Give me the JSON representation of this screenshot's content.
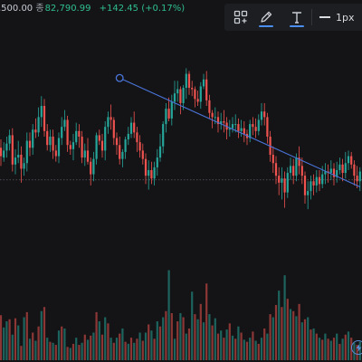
{
  "header": {
    "ohlc_prefix": ",500.00",
    "close_label": "종",
    "close_value": "82,790.99",
    "change_text": "+142.45 (+0.17%)"
  },
  "toolbar": {
    "tools": [
      {
        "name": "layout-add",
        "icon": "grid-plus-icon"
      },
      {
        "name": "line-color",
        "icon": "pencil-icon",
        "underline_color": "#4a8ff0"
      },
      {
        "name": "text-color",
        "icon": "text-t-icon",
        "underline_color": "#4a8ff0"
      }
    ],
    "line_width_label": "1px",
    "more_label": "‹"
  },
  "colors": {
    "background": "#141416",
    "up": "#26a69a",
    "down": "#ef5350",
    "trendline": "#4a74d9",
    "accent": "#4a8ff0"
  },
  "chart_data": {
    "type": "candlestick",
    "candles": [
      [
        138,
        132,
        144,
        125
      ],
      [
        131,
        136,
        142,
        128
      ],
      [
        136,
        141,
        146,
        131
      ],
      [
        141,
        147,
        151,
        136
      ],
      [
        147,
        126,
        152,
        121
      ],
      [
        126,
        131,
        137,
        119
      ],
      [
        131,
        133,
        143,
        127
      ],
      [
        133,
        123,
        139,
        113
      ],
      [
        123,
        127,
        131,
        118
      ],
      [
        127,
        143,
        149,
        121
      ],
      [
        143,
        138,
        149,
        132
      ],
      [
        138,
        151,
        155,
        133
      ],
      [
        151,
        149,
        159,
        145
      ],
      [
        149,
        160,
        167,
        146
      ],
      [
        160,
        168,
        175,
        153
      ],
      [
        168,
        150,
        173,
        146
      ],
      [
        150,
        140,
        155,
        136
      ],
      [
        140,
        146,
        151,
        135
      ],
      [
        146,
        136,
        151,
        130
      ],
      [
        136,
        132,
        140,
        128
      ],
      [
        132,
        145,
        149,
        127
      ],
      [
        145,
        153,
        160,
        140
      ],
      [
        153,
        158,
        165,
        150
      ],
      [
        158,
        140,
        161,
        135
      ],
      [
        140,
        137,
        143,
        133
      ],
      [
        137,
        142,
        148,
        129
      ],
      [
        142,
        150,
        156,
        140
      ],
      [
        150,
        146,
        155,
        138
      ],
      [
        146,
        131,
        150,
        127
      ],
      [
        131,
        136,
        141,
        125
      ],
      [
        136,
        128,
        145,
        126
      ],
      [
        128,
        119,
        131,
        111
      ],
      [
        119,
        130,
        135,
        114
      ],
      [
        130,
        147,
        149,
        126
      ],
      [
        147,
        143,
        151,
        140
      ],
      [
        143,
        136,
        148,
        131
      ],
      [
        136,
        153,
        157,
        129
      ],
      [
        153,
        160,
        164,
        148
      ],
      [
        160,
        158,
        169,
        151
      ],
      [
        158,
        145,
        160,
        140
      ],
      [
        145,
        140,
        149,
        133
      ],
      [
        140,
        130,
        146,
        126
      ],
      [
        130,
        135,
        137,
        124
      ],
      [
        135,
        144,
        146,
        130
      ],
      [
        144,
        148,
        153,
        140
      ],
      [
        148,
        156,
        160,
        145
      ],
      [
        156,
        149,
        164,
        145
      ],
      [
        149,
        142,
        153,
        135
      ],
      [
        142,
        136,
        147,
        131
      ],
      [
        136,
        130,
        141,
        126
      ],
      [
        130,
        118,
        134,
        112
      ],
      [
        118,
        122,
        129,
        108
      ],
      [
        122,
        116,
        128,
        112
      ],
      [
        116,
        124,
        128,
        111
      ],
      [
        124,
        131,
        137,
        118
      ],
      [
        131,
        139,
        148,
        128
      ],
      [
        139,
        155,
        157,
        134
      ],
      [
        155,
        166,
        170,
        149
      ],
      [
        166,
        159,
        174,
        157
      ],
      [
        159,
        171,
        176,
        154
      ],
      [
        171,
        177,
        186,
        165
      ],
      [
        177,
        180,
        186,
        171
      ],
      [
        180,
        170,
        182,
        162
      ],
      [
        170,
        181,
        183,
        165
      ],
      [
        181,
        191,
        195,
        173
      ],
      [
        191,
        181,
        193,
        176
      ],
      [
        181,
        180,
        186,
        175
      ],
      [
        180,
        173,
        182,
        167
      ],
      [
        173,
        171,
        179,
        168
      ],
      [
        171,
        182,
        185,
        166
      ],
      [
        182,
        187,
        191,
        180
      ],
      [
        187,
        172,
        193,
        168
      ],
      [
        172,
        163,
        176,
        159
      ],
      [
        163,
        160,
        165,
        152
      ],
      [
        160,
        160,
        167,
        155
      ],
      [
        160,
        155,
        164,
        149
      ],
      [
        155,
        157,
        163,
        151
      ],
      [
        157,
        156,
        165,
        149
      ],
      [
        156,
        151,
        160,
        144
      ],
      [
        151,
        152,
        158,
        146
      ],
      [
        152,
        155,
        160,
        149
      ],
      [
        155,
        155,
        162,
        149
      ],
      [
        155,
        150,
        159,
        145
      ],
      [
        150,
        152,
        158,
        146
      ],
      [
        152,
        148,
        157,
        142
      ],
      [
        148,
        145,
        151,
        140
      ],
      [
        145,
        155,
        158,
        142
      ],
      [
        155,
        153,
        160,
        147
      ],
      [
        153,
        150,
        159,
        145
      ],
      [
        150,
        158,
        162,
        147
      ],
      [
        158,
        164,
        170,
        154
      ],
      [
        164,
        160,
        170,
        154
      ],
      [
        160,
        146,
        163,
        141
      ],
      [
        146,
        133,
        150,
        128
      ],
      [
        133,
        127,
        139,
        120
      ],
      [
        127,
        118,
        132,
        112
      ],
      [
        118,
        113,
        124,
        104
      ],
      [
        113,
        116,
        124,
        101
      ],
      [
        116,
        106,
        121,
        95
      ],
      [
        106,
        120,
        124,
        102
      ],
      [
        120,
        125,
        131,
        115
      ],
      [
        125,
        118,
        130,
        112
      ],
      [
        118,
        131,
        134,
        114
      ],
      [
        131,
        125,
        139,
        119
      ],
      [
        125,
        118,
        131,
        112
      ],
      [
        118,
        104,
        121,
        98
      ],
      [
        104,
        107,
        114,
        94
      ],
      [
        107,
        114,
        118,
        101
      ],
      [
        114,
        111,
        119,
        104
      ],
      [
        111,
        117,
        122,
        106
      ],
      [
        117,
        112,
        122,
        107
      ],
      [
        112,
        119,
        125,
        109
      ],
      [
        119,
        121,
        127,
        112
      ],
      [
        121,
        120,
        126,
        113
      ],
      [
        120,
        123,
        129,
        115
      ],
      [
        123,
        117,
        127,
        111
      ],
      [
        117,
        122,
        128,
        113
      ],
      [
        122,
        126,
        131,
        119
      ],
      [
        126,
        120,
        130,
        114
      ],
      [
        120,
        127,
        135,
        116
      ],
      [
        127,
        132,
        136,
        122
      ],
      [
        132,
        126,
        135,
        123
      ],
      [
        126,
        118,
        129,
        111
      ],
      [
        118,
        114,
        125,
        109
      ],
      [
        114,
        121,
        124,
        107
      ]
    ],
    "volume": [
      [
        44,
        0
      ],
      [
        32,
        1
      ],
      [
        38,
        1
      ],
      [
        40,
        0
      ],
      [
        25,
        1
      ],
      [
        41,
        0
      ],
      [
        34,
        1
      ],
      [
        14,
        0
      ],
      [
        42,
        1
      ],
      [
        47,
        0
      ],
      [
        21,
        1
      ],
      [
        27,
        0
      ],
      [
        19,
        1
      ],
      [
        33,
        0
      ],
      [
        48,
        1
      ],
      [
        52,
        0
      ],
      [
        22,
        1
      ],
      [
        18,
        0
      ],
      [
        17,
        1
      ],
      [
        15,
        0
      ],
      [
        29,
        1
      ],
      [
        33,
        0
      ],
      [
        31,
        1
      ],
      [
        13,
        0
      ],
      [
        12,
        1
      ],
      [
        16,
        0
      ],
      [
        22,
        1
      ],
      [
        15,
        0
      ],
      [
        17,
        1
      ],
      [
        25,
        0
      ],
      [
        20,
        1
      ],
      [
        24,
        0
      ],
      [
        27,
        1
      ],
      [
        47,
        0
      ],
      [
        38,
        1
      ],
      [
        25,
        0
      ],
      [
        42,
        1
      ],
      [
        36,
        0
      ],
      [
        22,
        1
      ],
      [
        17,
        0
      ],
      [
        22,
        1
      ],
      [
        26,
        0
      ],
      [
        31,
        1
      ],
      [
        18,
        0
      ],
      [
        16,
        1
      ],
      [
        22,
        0
      ],
      [
        17,
        1
      ],
      [
        21,
        0
      ],
      [
        27,
        1
      ],
      [
        19,
        0
      ],
      [
        27,
        1
      ],
      [
        35,
        0
      ],
      [
        29,
        1
      ],
      [
        21,
        0
      ],
      [
        38,
        1
      ],
      [
        33,
        0
      ],
      [
        42,
        1
      ],
      [
        48,
        0
      ],
      [
        88,
        1
      ],
      [
        46,
        0
      ],
      [
        21,
        1
      ],
      [
        38,
        0
      ],
      [
        46,
        1
      ],
      [
        42,
        0
      ],
      [
        26,
        1
      ],
      [
        31,
        0
      ],
      [
        67,
        1
      ],
      [
        45,
        0
      ],
      [
        40,
        1
      ],
      [
        55,
        0
      ],
      [
        37,
        1
      ],
      [
        75,
        0
      ],
      [
        45,
        1
      ],
      [
        34,
        0
      ],
      [
        41,
        1
      ],
      [
        26,
        0
      ],
      [
        29,
        1
      ],
      [
        22,
        0
      ],
      [
        30,
        1
      ],
      [
        36,
        0
      ],
      [
        24,
        1
      ],
      [
        21,
        0
      ],
      [
        33,
        1
      ],
      [
        27,
        0
      ],
      [
        20,
        1
      ],
      [
        18,
        0
      ],
      [
        22,
        1
      ],
      [
        28,
        0
      ],
      [
        19,
        1
      ],
      [
        16,
        0
      ],
      [
        22,
        1
      ],
      [
        31,
        0
      ],
      [
        26,
        1
      ],
      [
        45,
        0
      ],
      [
        42,
        1
      ],
      [
        54,
        0
      ],
      [
        68,
        1
      ],
      [
        52,
        0
      ],
      [
        83,
        1
      ],
      [
        60,
        0
      ],
      [
        50,
        1
      ],
      [
        48,
        0
      ],
      [
        43,
        1
      ],
      [
        55,
        0
      ],
      [
        37,
        1
      ],
      [
        40,
        0
      ],
      [
        42,
        1
      ],
      [
        30,
        0
      ],
      [
        31,
        1
      ],
      [
        26,
        0
      ],
      [
        22,
        1
      ],
      [
        20,
        0
      ],
      [
        26,
        1
      ],
      [
        21,
        0
      ],
      [
        19,
        1
      ],
      [
        22,
        0
      ],
      [
        26,
        1
      ],
      [
        16,
        0
      ],
      [
        21,
        1
      ],
      [
        25,
        0
      ],
      [
        28,
        1
      ],
      [
        22,
        0
      ],
      [
        17,
        1
      ],
      [
        15,
        0
      ],
      [
        18,
        1
      ]
    ],
    "price_range": [
      85,
      205
    ],
    "volume_range": [
      0,
      100
    ],
    "trendline": {
      "from_index": 41,
      "from_price": 188,
      "to_index": 124,
      "to_price": 110
    },
    "reference_line_price": 115
  }
}
